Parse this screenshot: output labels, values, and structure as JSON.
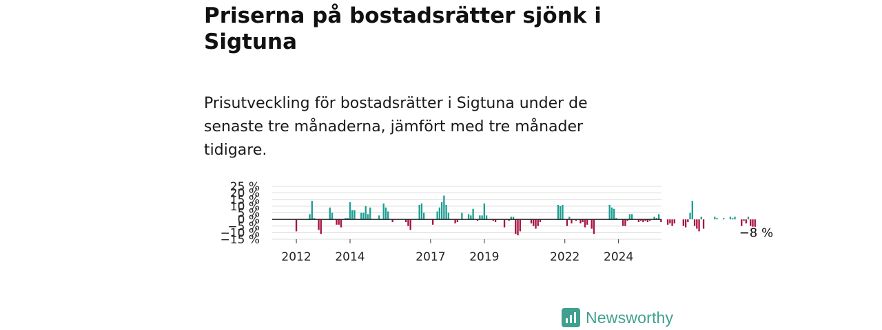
{
  "title": "Priserna på bostadsrätter sjönk i Sigtuna",
  "subtitle": "Prisutveckling för bostadsrätter i Sigtuna under de senaste tre månaderna, jämfört med tre månader tidigare.",
  "brand": {
    "name": "Newsworthy",
    "color": "#3fa08f"
  },
  "colors": {
    "positive": "#1e9e93",
    "negative": "#a8123f",
    "grid": "#dddddd",
    "zero_line": "#222222"
  },
  "chart_data": {
    "type": "bar",
    "y_ticks": [
      25,
      20,
      15,
      10,
      5,
      0,
      -5,
      -10,
      -15
    ],
    "y_tick_labels": [
      "25 %",
      "20 %",
      "15 %",
      "10 %",
      "5 %",
      "0 %",
      "−5 %",
      "−10 %",
      "−15 %"
    ],
    "ylim": [
      -15,
      25
    ],
    "x_ticks": [
      "2012",
      "2014",
      "2017",
      "2019",
      "2022",
      "2024"
    ],
    "x_tick_positions": [
      2012.0,
      2014.0,
      2017.0,
      2019.0,
      2022.0,
      2024.0
    ],
    "xlim": [
      2011.1,
      2025.6
    ],
    "grid": true,
    "last_value_label": "−8 %",
    "series": [
      {
        "start": 2012.0,
        "step_months": 1,
        "values": [
          -9,
          0,
          0,
          0,
          0,
          0,
          4,
          14,
          1,
          0,
          -8,
          -11,
          0,
          0,
          0,
          9,
          5,
          0,
          -4,
          -4,
          -6,
          0,
          1,
          1,
          13,
          7,
          7,
          0,
          0,
          5,
          5,
          10,
          4,
          9,
          0,
          0,
          0,
          3,
          0,
          12,
          9,
          6,
          0,
          -2,
          0,
          0,
          0,
          0,
          0,
          -2,
          -5,
          -8,
          0,
          0,
          0,
          11,
          12,
          5,
          0,
          0,
          0,
          -4,
          0,
          6,
          9,
          13,
          18,
          11,
          5,
          0,
          0,
          -3,
          -2,
          0,
          5,
          0,
          0,
          4,
          3,
          8,
          0,
          -1,
          3,
          3,
          12,
          3,
          0,
          0,
          -1,
          -2,
          0,
          0,
          0,
          -6,
          0,
          -1,
          2,
          2,
          -11,
          -12,
          -9,
          0,
          0,
          0,
          0,
          -3,
          -5,
          -7,
          -5,
          -2,
          0,
          0,
          0,
          0,
          0,
          0,
          0,
          11,
          10,
          11,
          0,
          -5,
          2,
          -3,
          0,
          -1,
          0,
          -3,
          -2,
          -6,
          -4,
          0,
          -7,
          -11,
          0,
          0,
          0,
          0,
          0,
          0,
          11,
          9,
          8,
          1,
          0,
          0,
          -5,
          -5,
          -1,
          4,
          4,
          0,
          0,
          -2,
          -1,
          -2,
          -1,
          -2,
          -1,
          0,
          2,
          1,
          4,
          -2,
          0,
          0,
          -4,
          -3,
          -5,
          -3,
          0,
          0,
          0,
          -5,
          -6,
          -2,
          5,
          14,
          -5,
          -7,
          -9,
          2,
          -7,
          0,
          0,
          0,
          0,
          2,
          1,
          0,
          0,
          1,
          0,
          0,
          2,
          1,
          2,
          0,
          0,
          -5,
          -1,
          -3,
          2,
          -5,
          -9,
          -8
        ]
      }
    ]
  }
}
